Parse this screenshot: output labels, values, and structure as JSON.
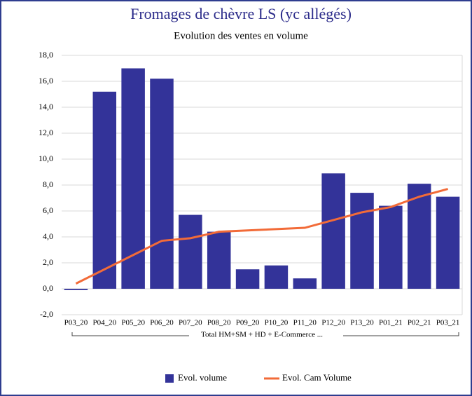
{
  "chart_data": {
    "type": "bar_line",
    "title": "Fromages de chèvre LS (yc allégés)",
    "subtitle": "Evolution des ventes en volume",
    "categories": [
      "P03_20",
      "P04_20",
      "P05_20",
      "P06_20",
      "P07_20",
      "P08_20",
      "P09_20",
      "P10_20",
      "P11_20",
      "P12_20",
      "P13_20",
      "P01_21",
      "P02_21",
      "P03_21"
    ],
    "group_label": "Total HM+SM + HD + E-Commerce ...",
    "series": [
      {
        "name": "Evol. volume",
        "type": "bar",
        "color": "#333399",
        "values": [
          -0.1,
          15.2,
          17.0,
          16.2,
          5.7,
          4.4,
          1.5,
          1.8,
          0.8,
          8.9,
          7.4,
          6.4,
          8.1,
          7.1
        ]
      },
      {
        "name": "Evol. Cam Volume",
        "type": "line",
        "color": "#f26b38",
        "values": [
          0.4,
          1.5,
          2.6,
          3.7,
          3.9,
          4.4,
          4.5,
          4.6,
          4.7,
          5.3,
          5.9,
          6.3,
          7.1,
          7.7
        ]
      }
    ],
    "ylim": [
      -2,
      18
    ],
    "yticks": [
      {
        "value": -2,
        "label": "-2,0"
      },
      {
        "value": 0,
        "label": "0,0"
      },
      {
        "value": 2,
        "label": "2,0"
      },
      {
        "value": 4,
        "label": "4,0"
      },
      {
        "value": 6,
        "label": "6,0"
      },
      {
        "value": 8,
        "label": "8,0"
      },
      {
        "value": 10,
        "label": "10,0"
      },
      {
        "value": 12,
        "label": "12,0"
      },
      {
        "value": 14,
        "label": "14,0"
      },
      {
        "value": 16,
        "label": "16,0"
      },
      {
        "value": 18,
        "label": "18,0"
      }
    ],
    "grid": true,
    "legend": "bottom"
  }
}
